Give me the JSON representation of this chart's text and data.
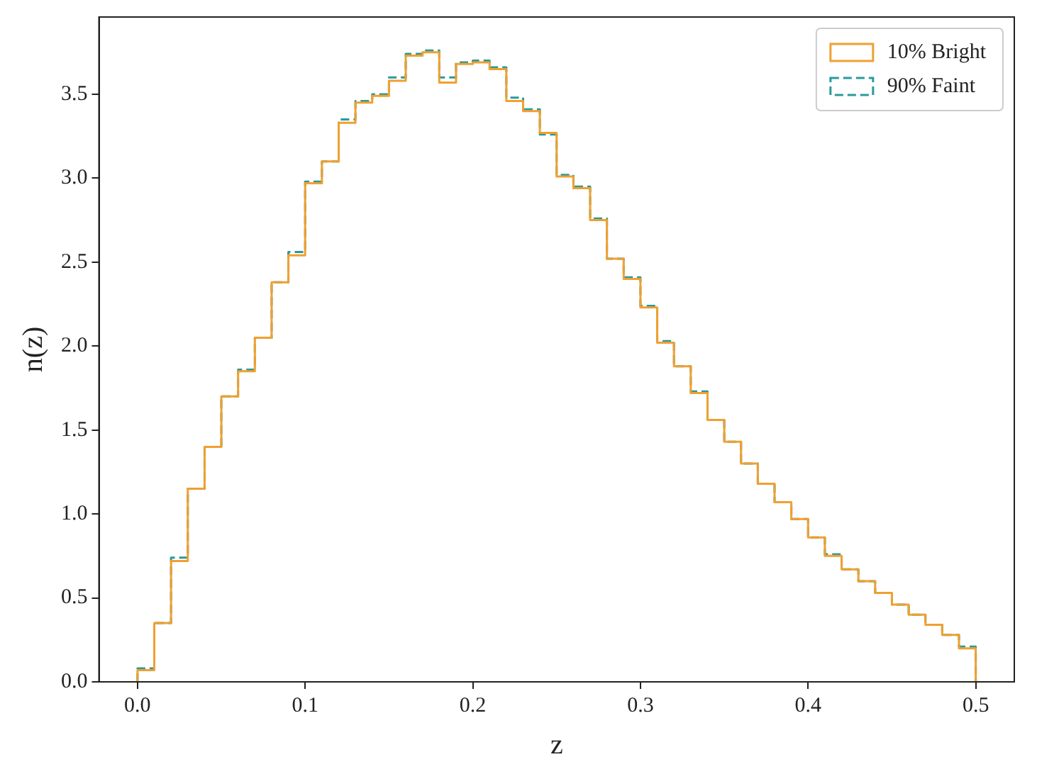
{
  "chart_data": {
    "type": "histogram",
    "xlabel": "z",
    "ylabel": "n(z)",
    "bins": [
      0,
      0.01,
      0.02,
      0.03,
      0.04,
      0.05,
      0.06,
      0.07,
      0.08,
      0.09,
      0.1,
      0.11,
      0.12,
      0.13,
      0.14,
      0.15,
      0.16,
      0.17,
      0.18,
      0.19,
      0.2,
      0.21,
      0.22,
      0.23,
      0.24,
      0.25,
      0.26,
      0.27,
      0.28,
      0.29,
      0.3,
      0.31,
      0.32,
      0.33,
      0.34,
      0.35,
      0.36,
      0.37,
      0.38,
      0.39,
      0.4,
      0.41,
      0.42,
      0.43,
      0.44,
      0.45,
      0.46,
      0.47,
      0.48,
      0.49,
      0.5
    ],
    "series": [
      {
        "name": "10% Bright",
        "color": "#f0a030",
        "line_style": "solid",
        "values": [
          0.07,
          0.35,
          0.72,
          1.15,
          1.4,
          1.7,
          1.85,
          2.05,
          2.38,
          2.54,
          2.97,
          3.1,
          3.33,
          3.45,
          3.49,
          3.58,
          3.73,
          3.75,
          3.57,
          3.68,
          3.69,
          3.65,
          3.46,
          3.4,
          3.27,
          3.01,
          2.94,
          2.75,
          2.52,
          2.4,
          2.23,
          2.02,
          1.88,
          1.72,
          1.56,
          1.43,
          1.3,
          1.18,
          1.07,
          0.97,
          0.86,
          0.75,
          0.67,
          0.6,
          0.53,
          0.46,
          0.4,
          0.34,
          0.28,
          0.2
        ]
      },
      {
        "name": "90% Faint",
        "color": "#2a9a9a",
        "line_style": "dashed",
        "values": [
          0.08,
          0.35,
          0.74,
          1.15,
          1.4,
          1.7,
          1.86,
          2.05,
          2.38,
          2.56,
          2.98,
          3.1,
          3.35,
          3.46,
          3.5,
          3.6,
          3.74,
          3.76,
          3.6,
          3.69,
          3.7,
          3.66,
          3.48,
          3.41,
          3.26,
          3.02,
          2.95,
          2.76,
          2.52,
          2.41,
          2.24,
          2.03,
          1.88,
          1.73,
          1.56,
          1.43,
          1.3,
          1.18,
          1.07,
          0.97,
          0.86,
          0.76,
          0.67,
          0.6,
          0.53,
          0.46,
          0.4,
          0.34,
          0.28,
          0.21
        ]
      }
    ],
    "xlim": [
      -0.023,
      0.523
    ],
    "xticks": [
      {
        "value": 0,
        "label": "0.0"
      },
      0.1,
      0.2,
      0.3,
      0.4,
      0.5
    ],
    "ylim": [
      0,
      3.96
    ],
    "yticks": [
      {
        "value": 0,
        "label": "0.0"
      },
      0.5,
      {
        "value": 1,
        "label": "1.0"
      },
      1.5,
      {
        "value": 2,
        "label": "2.0"
      },
      2.5,
      {
        "value": 3,
        "label": "3.0"
      },
      3.5
    ],
    "grid": false,
    "legend": "top right"
  }
}
